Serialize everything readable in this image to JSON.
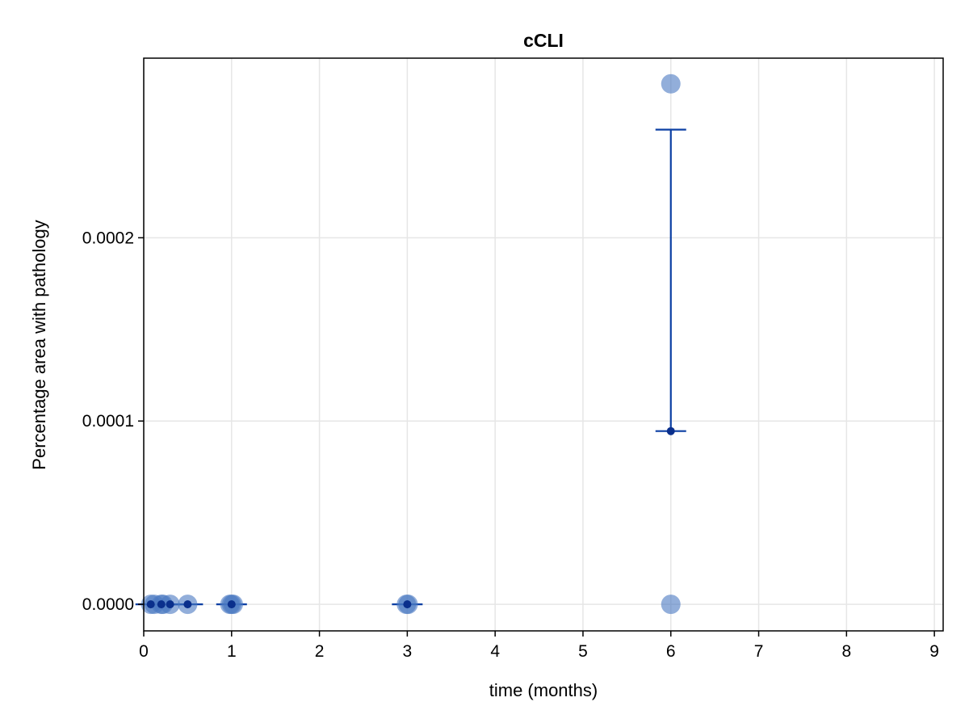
{
  "chart_data": {
    "type": "scatter",
    "title": "cCLI",
    "xlabel": "time (months)",
    "ylabel": "Percentage area with pathology",
    "xlim": [
      0,
      9.1
    ],
    "ylim": [
      -1.45e-05,
      0.000298
    ],
    "x_ticks": [
      {
        "value": 0,
        "label": "0"
      },
      {
        "value": 1,
        "label": "1"
      },
      {
        "value": 2,
        "label": "2"
      },
      {
        "value": 3,
        "label": "3"
      },
      {
        "value": 4,
        "label": "4"
      },
      {
        "value": 5,
        "label": "5"
      },
      {
        "value": 6,
        "label": "6"
      },
      {
        "value": 7,
        "label": "7"
      },
      {
        "value": 8,
        "label": "8"
      },
      {
        "value": 9,
        "label": "9"
      }
    ],
    "y_ticks": [
      {
        "value": 0,
        "label": "0.0000"
      },
      {
        "value": 0.0001,
        "label": "0.0001"
      },
      {
        "value": 0.0002,
        "label": "0.0002"
      }
    ],
    "grid": true,
    "colors": {
      "points": "#4a78c2",
      "error_bars": "#0b3fa3",
      "mean_marker": "#0a2f8c",
      "grid": "#e6e6e6"
    },
    "individual_points": [
      {
        "x": 0.08,
        "y": 0
      },
      {
        "x": 0.12,
        "y": 0
      },
      {
        "x": 0.2,
        "y": 0
      },
      {
        "x": 0.22,
        "y": 0
      },
      {
        "x": 0.3,
        "y": 0
      },
      {
        "x": 0.5,
        "y": 0
      },
      {
        "x": 0.98,
        "y": 0
      },
      {
        "x": 1.0,
        "y": 0
      },
      {
        "x": 1.02,
        "y": 0
      },
      {
        "x": 2.99,
        "y": 0
      },
      {
        "x": 3.01,
        "y": 0
      },
      {
        "x": 6.0,
        "y": 0
      },
      {
        "x": 6.0,
        "y": 0.000284
      }
    ],
    "summary": [
      {
        "x": 0.08,
        "mean": 0,
        "lower": 0,
        "upper": 0
      },
      {
        "x": 0.2,
        "mean": 0,
        "lower": 0,
        "upper": 0
      },
      {
        "x": 0.3,
        "mean": 0,
        "lower": 0,
        "upper": 0
      },
      {
        "x": 0.5,
        "mean": 0,
        "lower": 0,
        "upper": 0
      },
      {
        "x": 1.0,
        "mean": 0,
        "lower": 0,
        "upper": 0
      },
      {
        "x": 3.0,
        "mean": 0,
        "lower": 0,
        "upper": 0
      },
      {
        "x": 6.0,
        "mean": 9.45e-05,
        "lower": 9.45e-05,
        "upper": 0.000259
      }
    ]
  }
}
